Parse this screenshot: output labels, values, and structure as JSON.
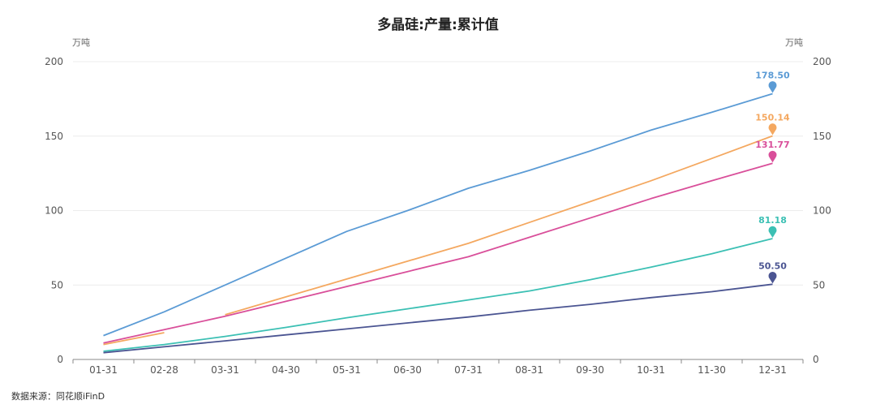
{
  "chart_data": {
    "type": "line",
    "title": "多晶硅:产量:累计值",
    "y_unit_left": "万吨",
    "y_unit_right": "万吨",
    "ylim": [
      0,
      200
    ],
    "yticks": [
      0,
      50,
      100,
      150,
      200
    ],
    "categories": [
      "01-31",
      "02-28",
      "03-31",
      "04-30",
      "05-31",
      "06-30",
      "07-31",
      "08-31",
      "09-30",
      "10-31",
      "11-30",
      "12-31"
    ],
    "grid": "horizontal",
    "series": [
      {
        "color": "#5b9bd5",
        "values": [
          16,
          32,
          50,
          68,
          86,
          100,
          115,
          127,
          140,
          154,
          166,
          178.5
        ],
        "end_label": "178.50"
      },
      {
        "color": "#f4a860",
        "values": [
          10,
          18,
          null,
          null,
          null,
          null,
          null,
          null,
          null,
          null,
          null,
          null
        ],
        "end_label": ""
      },
      {
        "color": "#f4a860",
        "values": [
          null,
          null,
          30,
          42,
          54,
          66,
          78,
          92,
          106,
          120,
          135,
          150.14
        ],
        "end_label": "150.14"
      },
      {
        "color": "#d94f9a",
        "values": [
          11,
          20,
          29,
          39,
          49,
          59,
          69,
          82,
          95,
          108,
          120,
          131.77
        ],
        "end_label": "131.77"
      },
      {
        "color": "#3cc0b4",
        "values": [
          5.5,
          10,
          15.5,
          21.5,
          28,
          34,
          40,
          46,
          53.5,
          62,
          71,
          81.18
        ],
        "end_label": "81.18"
      },
      {
        "color": "#4b5592",
        "values": [
          4.5,
          8.5,
          12.5,
          16.5,
          20.5,
          24.5,
          28.5,
          33,
          37,
          41.5,
          45.5,
          50.5
        ],
        "end_label": "50.50"
      }
    ]
  },
  "source_note": "数据来源：同花顺iFinD"
}
